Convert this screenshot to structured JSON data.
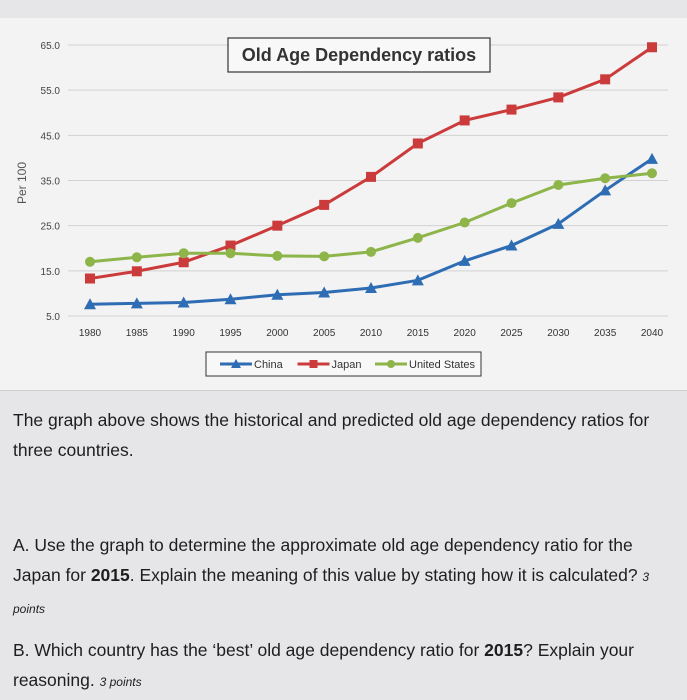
{
  "chart_data": {
    "type": "line",
    "title": "Old Age Dependency ratios",
    "ylabel": "Per 100",
    "xlabel": "",
    "x": [
      1980,
      1985,
      1990,
      1995,
      2000,
      2005,
      2010,
      2015,
      2020,
      2025,
      2030,
      2035,
      2040
    ],
    "ylim": [
      5,
      65
    ],
    "yticks": [
      "5.0",
      "15.0",
      "25.0",
      "35.0",
      "45.0",
      "55.0",
      "65.0"
    ],
    "grid": true,
    "legend": "bottom",
    "series": [
      {
        "name": "China",
        "color": "#2e6db4",
        "marker": "triangle",
        "values": [
          7.6,
          7.8,
          8.0,
          8.7,
          9.7,
          10.2,
          11.2,
          12.9,
          17.2,
          20.6,
          25.4,
          32.8,
          39.8
        ]
      },
      {
        "name": "Japan",
        "color": "#cc3b3b",
        "marker": "square",
        "values": [
          13.3,
          14.9,
          16.9,
          20.6,
          25.0,
          29.6,
          35.8,
          43.2,
          48.3,
          50.7,
          53.4,
          57.4,
          64.5
        ]
      },
      {
        "name": "United States",
        "color": "#8db54a",
        "marker": "circle",
        "values": [
          17.0,
          18.0,
          18.9,
          18.9,
          18.3,
          18.2,
          19.2,
          22.3,
          25.7,
          30.0,
          34.0,
          35.5,
          36.6
        ]
      }
    ]
  },
  "text": {
    "intro": "The graph above shows the historical and predicted old age dependency ratios for three countries.",
    "qa_pre": "A. Use the graph to determine the approximate old age dependency ratio for the Japan for ",
    "qa_bold": "2015",
    "qa_post": ". Explain the meaning of this value by stating how it is calculated? ",
    "qa_points": "3 points",
    "qb_pre": "B. Which country has the ‘best’ old age dependency ratio for ",
    "qb_bold": "2015",
    "qb_post": "? Explain your reasoning. ",
    "qb_points": "3 points"
  }
}
